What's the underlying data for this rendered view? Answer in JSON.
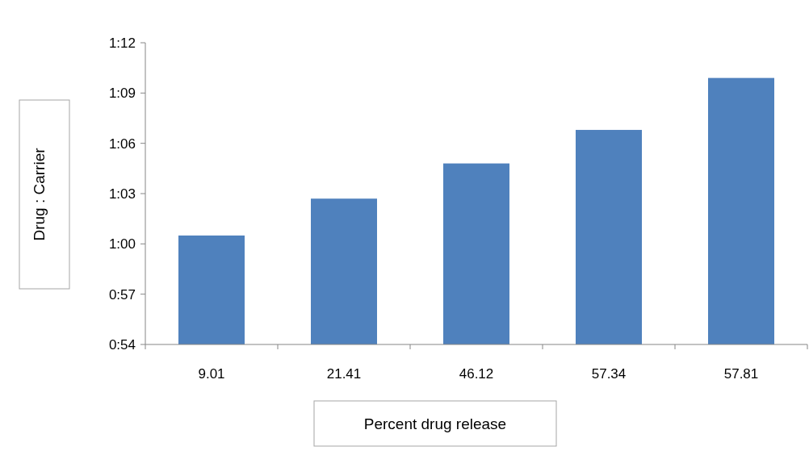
{
  "chart_data": {
    "type": "bar",
    "xlabel": "Percent drug release",
    "ylabel": "Drug : Carrier",
    "categories": [
      "9.01",
      "21.41",
      "46.12",
      "57.34",
      "57.81"
    ],
    "values": [
      60.5,
      62.7,
      64.8,
      66.8,
      69.9
    ],
    "color": "#4f81bd",
    "ylim": [
      54,
      72
    ],
    "yticks": [
      {
        "value": 54,
        "label": "0:54"
      },
      {
        "value": 57,
        "label": "0:57"
      },
      {
        "value": 60,
        "label": "1:00"
      },
      {
        "value": 63,
        "label": "1:03"
      },
      {
        "value": 66,
        "label": "1:06"
      },
      {
        "value": 69,
        "label": "1:09"
      },
      {
        "value": 72,
        "label": "1:12"
      }
    ],
    "grid": false
  }
}
